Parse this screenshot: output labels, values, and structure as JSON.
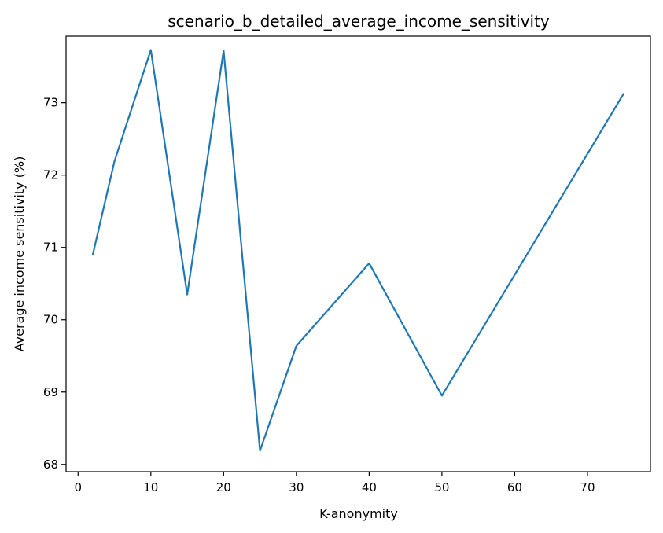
{
  "chart_data": {
    "type": "line",
    "title": "scenario_b_detailed_average_income_sensitivity",
    "xlabel": "K-anonymity",
    "ylabel": "Average income sensitivity (%)",
    "xlim": [
      -1.65,
      78.65
    ],
    "ylim": [
      67.9,
      73.92
    ],
    "xticks": [
      0,
      10,
      20,
      30,
      40,
      50,
      60,
      70
    ],
    "xtick_labels": [
      "0",
      "10",
      "20",
      "30",
      "40",
      "50",
      "60",
      "70"
    ],
    "yticks": [
      68,
      69,
      70,
      71,
      72,
      73
    ],
    "ytick_labels": [
      "68",
      "69",
      "70",
      "71",
      "72",
      "73"
    ],
    "grid": false,
    "series": [
      {
        "color": "#1f77b4",
        "x": [
          2,
          5,
          10,
          15,
          20,
          25,
          30,
          40,
          50,
          75
        ],
        "y": [
          70.89,
          72.19,
          73.73,
          70.35,
          73.72,
          68.19,
          69.64,
          70.78,
          68.95,
          73.13
        ]
      }
    ]
  }
}
